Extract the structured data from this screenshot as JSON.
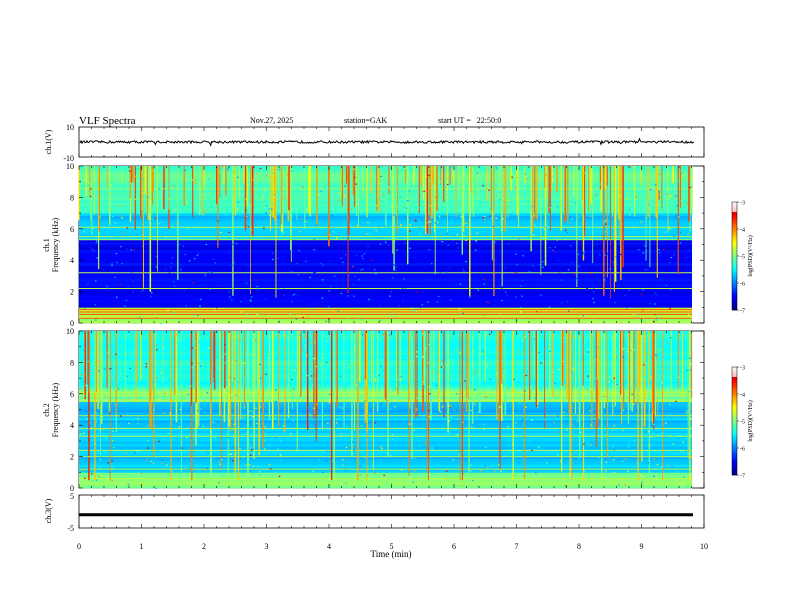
{
  "header": {
    "title": "VLF Spectra",
    "date": "Nov.27, 2025",
    "station": "station=GAK",
    "start": "start UT =   22:50:0"
  },
  "chart_data": [
    {
      "type": "line",
      "name": "ch1-waveform",
      "ylabel": "ch.1(V)",
      "ylim": [
        -10,
        10
      ],
      "y_ticks": [
        "10",
        "-10"
      ],
      "approx_level": 0
    },
    {
      "type": "heatmap",
      "name": "ch1-spectrogram",
      "ylabel_top": "ch.1",
      "ylabel": "Frequency (kHz)",
      "ylim": [
        0,
        10
      ],
      "y_ticks": [
        "0",
        "2",
        "4",
        "6",
        "8",
        "10"
      ],
      "colorbar": {
        "label": "log(PSD)(V²/Hz)",
        "ticks": [
          "-3",
          "-4",
          "-5",
          "-6",
          "-7"
        ],
        "range": [
          -7,
          -3
        ]
      }
    },
    {
      "type": "heatmap",
      "name": "ch2-spectrogram",
      "ylabel_top": "ch.2",
      "ylabel": "Frequency (kHz)",
      "ylim": [
        0,
        10
      ],
      "y_ticks": [
        "0",
        "2",
        "4",
        "6",
        "8",
        "10"
      ],
      "colorbar": {
        "label": "log(PSD)(V²/Hz)",
        "ticks": [
          "-3",
          "-4",
          "-5",
          "-6",
          "-7"
        ],
        "range": [
          -7,
          -3
        ]
      }
    },
    {
      "type": "line",
      "name": "ch3-waveform",
      "ylabel": "ch.3(V)",
      "ylim": [
        -5,
        5
      ],
      "y_ticks": [
        "5",
        "-5"
      ],
      "approx_level": -1
    }
  ],
  "xaxis": {
    "label": "Time (min)",
    "ticks": [
      "0",
      "1",
      "2",
      "3",
      "4",
      "5",
      "6",
      "7",
      "8",
      "9",
      "10"
    ],
    "xlim": [
      0,
      10
    ]
  }
}
